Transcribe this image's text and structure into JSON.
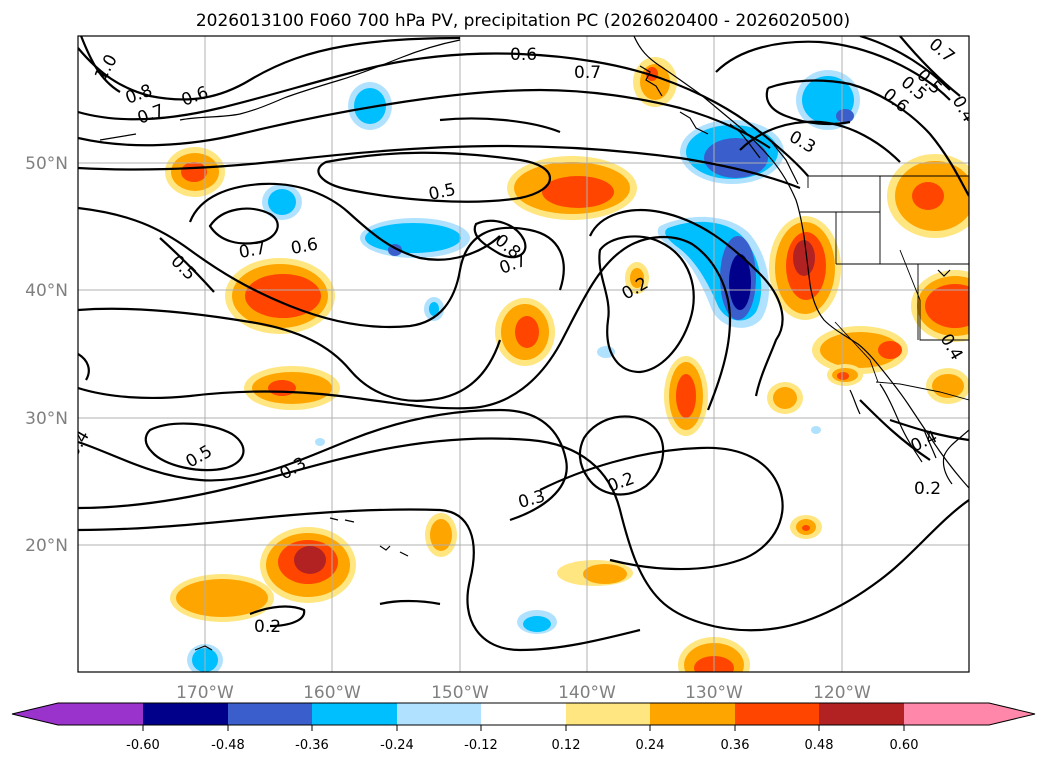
{
  "title": "2026013100 F060 700 hPa PV, precipitation PC (2026020400 - 2026020500)",
  "map": {
    "lon_labels": [
      "170°W",
      "160°W",
      "150°W",
      "140°W",
      "130°W",
      "120°W"
    ],
    "lat_labels": [
      "50°N",
      "40°N",
      "30°N",
      "20°N"
    ],
    "extent": {
      "lon_min": -180,
      "lon_max": -110,
      "lat_min": 10,
      "lat_max": 60
    },
    "contour_labels": [
      "1.0",
      "0.8",
      "0.7",
      "0.6",
      "0.6",
      "0.7",
      "0.5",
      "0.4",
      "0.3",
      "0.6",
      "0.5",
      "0.7",
      "0.5",
      "0.7",
      "0.6",
      "0.5",
      "0.8",
      "0.7",
      "0.2",
      "0.5",
      "0.3",
      "0.4",
      "0.3",
      "0.2",
      "0.2",
      "0.4",
      "0.2",
      "0.4"
    ]
  },
  "colorbar": {
    "labels": [
      "-0.60",
      "-0.48",
      "-0.36",
      "-0.24",
      "-0.12",
      "0.12",
      "0.24",
      "0.36",
      "0.48",
      "0.60"
    ],
    "colors": [
      "#9933cc",
      "#00008b",
      "#3a5fcd",
      "#00bfff",
      "#b0e2ff",
      "#ffffff",
      "#ffe680",
      "#ffa500",
      "#ff4500",
      "#b22222",
      "#ff88aa"
    ]
  }
}
